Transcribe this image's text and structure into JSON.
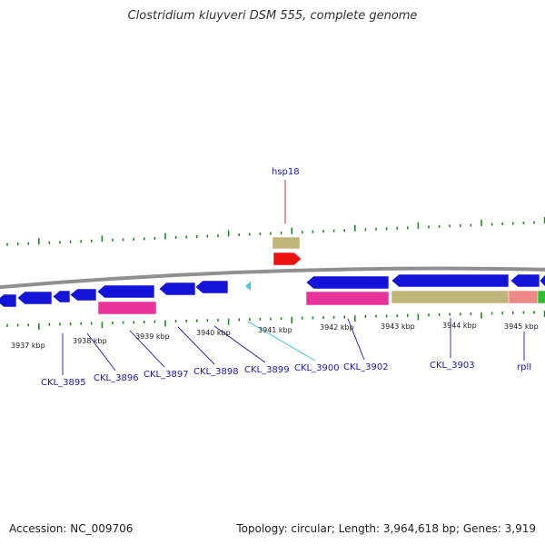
{
  "title": "Clostridium kluyveri DSM 555, complete genome",
  "footer": {
    "accession": "Accession: NC_009706",
    "summary": "Topology: circular; Length: 3,964,618 bp; Genes: 3,919"
  },
  "colors": {
    "tick": "#1f8a1f",
    "backbone": "#8f8f8f",
    "label": "#1a1aa6",
    "label_cyan": "#33c3dd",
    "label_red": "#cc1111",
    "cds_blue": "#1414d8",
    "pink": "#e8339a",
    "tan": "#bdb57a",
    "salmon": "#ee8888",
    "green": "#33bb33",
    "red": "#ee1111",
    "cyan": "#44c4ee"
  },
  "scale": {
    "labels": [
      "3937 kbp",
      "3938 kbp",
      "3939 kbp",
      "3940 kbp",
      "3941 kbp",
      "3942 kbp",
      "3943 kbp",
      "3944 kbp",
      "3945 kbp"
    ]
  },
  "genes": [
    {
      "label": "CKL_3895",
      "color": "label"
    },
    {
      "label": "CKL_3896",
      "color": "label"
    },
    {
      "label": "CKL_3897",
      "color": "label"
    },
    {
      "label": "CKL_3898",
      "color": "label"
    },
    {
      "label": "CKL_3899",
      "color": "label"
    },
    {
      "label": "CKL_3900",
      "color": "label_cyan"
    },
    {
      "label": "CKL_3902",
      "color": "label"
    },
    {
      "label": "CKL_3903",
      "color": "label"
    },
    {
      "label": "rplI",
      "color": "label"
    },
    {
      "label": "hsp18",
      "color": "label_red"
    }
  ]
}
